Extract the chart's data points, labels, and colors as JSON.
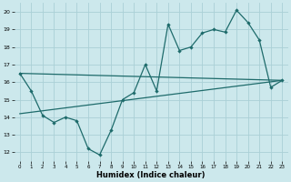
{
  "xlabel": "Humidex (Indice chaleur)",
  "bg_color": "#cce8ec",
  "grid_color": "#aad0d6",
  "line_color": "#1e6b6b",
  "xlim": [
    -0.5,
    23.5
  ],
  "ylim": [
    11.5,
    20.5
  ],
  "xticks": [
    0,
    1,
    2,
    3,
    4,
    5,
    6,
    7,
    8,
    9,
    10,
    11,
    12,
    13,
    14,
    15,
    16,
    17,
    18,
    19,
    20,
    21,
    22,
    23
  ],
  "yticks": [
    12,
    13,
    14,
    15,
    16,
    17,
    18,
    19,
    20
  ],
  "jagged_x": [
    0,
    1,
    2,
    3,
    4,
    5,
    6,
    7,
    8,
    9,
    10,
    11,
    12,
    13,
    14,
    15,
    16,
    17,
    18,
    19,
    20,
    21,
    22,
    23
  ],
  "jagged_y": [
    16.5,
    15.5,
    14.1,
    13.7,
    14.0,
    13.8,
    12.2,
    11.85,
    13.25,
    15.0,
    15.4,
    17.0,
    15.5,
    19.3,
    17.8,
    18.0,
    18.8,
    19.0,
    18.85,
    20.1,
    19.4,
    18.4,
    15.7,
    16.1
  ],
  "trend1_x": [
    0,
    23
  ],
  "trend1_y": [
    14.2,
    16.1
  ],
  "trend2_x": [
    0,
    23
  ],
  "trend2_y": [
    16.5,
    16.1
  ]
}
